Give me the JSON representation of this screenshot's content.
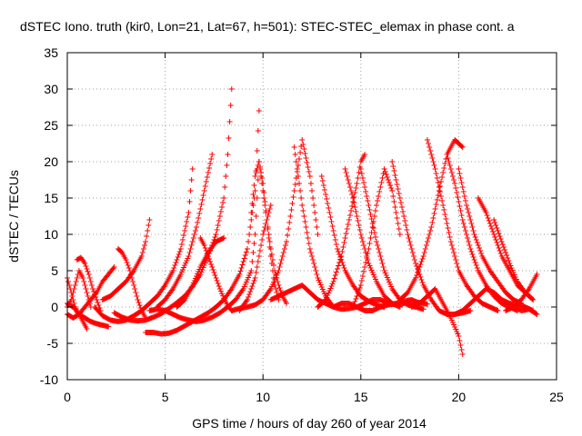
{
  "chart_data": {
    "type": "scatter",
    "title": "dSTEC Iono. truth (kir0, Lon=21, Lat=67, h=501): STEC-STEC_elemax in phase cont. a",
    "xlabel": "GPS time / hours of day 260 of year 2014",
    "ylabel": "dSTEC  / TECUs",
    "xlim": [
      0,
      25
    ],
    "ylim": [
      -10,
      35
    ],
    "xticks": [
      "0",
      "5",
      "10",
      "15",
      "20",
      "25"
    ],
    "yticks": [
      "-10",
      "-5",
      "0",
      "5",
      "10",
      "15",
      "20",
      "25",
      "30",
      "35"
    ],
    "grid": true,
    "marker": "plus",
    "color": "#ff0000",
    "series": [
      {
        "x": [
          0.0,
          0.2,
          0.4,
          0.6,
          0.8,
          1.0
        ],
        "y": [
          4,
          2,
          0,
          -1,
          -2,
          -3
        ]
      },
      {
        "x": [
          0.0,
          0.3,
          0.6,
          0.9,
          1.2,
          1.5,
          1.8,
          2.1,
          2.4
        ],
        "y": [
          -1,
          -1.5,
          -1,
          0,
          1,
          2,
          3.5,
          4.5,
          5.5
        ]
      },
      {
        "x": [
          0.5,
          0.7,
          0.9,
          1.1,
          1.3,
          1.5,
          1.7
        ],
        "y": [
          6.5,
          6.8,
          6.0,
          4.5,
          2.5,
          1.0,
          -0.5
        ]
      },
      {
        "x": [
          0.0,
          0.2,
          0.4,
          0.6,
          0.8,
          1.0,
          1.2
        ],
        "y": [
          0,
          1,
          3,
          5,
          4,
          2,
          0
        ]
      },
      {
        "x": [
          0.0,
          0.3,
          0.6,
          0.9,
          1.2,
          1.5,
          1.8,
          2.1
        ],
        "y": [
          0.5,
          0,
          -1,
          -1.5,
          -2,
          -2.3,
          -2.5,
          -2.7
        ]
      },
      {
        "x": [
          1.4,
          1.8,
          2.2,
          2.6,
          3.0,
          3.4,
          3.8,
          4.2,
          4.6,
          5.0,
          5.4,
          5.8,
          6.2,
          6.4
        ],
        "y": [
          0,
          -1.2,
          -1.8,
          -2,
          -1.8,
          -1.2,
          -0.5,
          0.5,
          1.5,
          3,
          5,
          8,
          13,
          19
        ]
      },
      {
        "x": [
          1.8,
          2.2,
          2.6,
          3.0,
          3.4,
          3.8,
          4.0,
          4.2
        ],
        "y": [
          1,
          1.5,
          2.5,
          3.5,
          5,
          7,
          9,
          12
        ]
      },
      {
        "x": [
          2.6,
          2.8,
          3.0,
          3.2,
          3.4,
          3.6,
          3.8,
          4.0
        ],
        "y": [
          8,
          7.5,
          6.5,
          5,
          3,
          1,
          -0.5,
          -1.5
        ]
      },
      {
        "x": [
          2.4,
          2.8,
          3.2,
          3.6,
          4.0,
          4.4,
          4.8,
          5.2,
          5.6,
          6.0,
          6.4,
          6.8,
          7.2,
          7.6,
          8.0,
          8.2,
          8.4
        ],
        "y": [
          -0.8,
          -1.4,
          -1.8,
          -1.9,
          -1.8,
          -1.4,
          -0.9,
          -0.2,
          0.6,
          1.5,
          2.8,
          4.5,
          7,
          10,
          15,
          21,
          30
        ]
      },
      {
        "x": [
          4.0,
          4.4,
          4.8,
          5.2,
          5.6,
          6.0,
          6.4,
          6.8,
          7.2,
          7.6,
          8.0,
          8.4,
          8.8,
          9.2,
          9.6,
          9.8
        ],
        "y": [
          -3.5,
          -3.5,
          -3.7,
          -3.6,
          -3.2,
          -2.6,
          -2,
          -1.4,
          -0.8,
          0,
          1,
          2.5,
          4.5,
          8,
          16,
          27
        ]
      },
      {
        "x": [
          4.2,
          4.6,
          5.0,
          5.4,
          5.8,
          6.2,
          6.6,
          7.0,
          7.4,
          7.8,
          8.2,
          8.6,
          9.0,
          9.4,
          9.6,
          9.8
        ],
        "y": [
          -0.5,
          -0.3,
          -0.5,
          -1,
          -1.5,
          -1.8,
          -2,
          -1.8,
          -1.4,
          -0.8,
          0,
          1,
          2.5,
          5,
          10,
          20
        ]
      },
      {
        "x": [
          4.6,
          5.0,
          5.4,
          5.8,
          6.2,
          6.6,
          7.0,
          7.4
        ],
        "y": [
          0,
          1,
          2.5,
          4.5,
          7,
          11,
          16,
          21
        ]
      },
      {
        "x": [
          5.6,
          6.0,
          6.4,
          6.8,
          7.2,
          7.6,
          8.0
        ],
        "y": [
          0,
          1,
          3,
          5.5,
          7.5,
          9,
          9.5
        ]
      },
      {
        "x": [
          6.8,
          7.0,
          7.2,
          7.4,
          7.6,
          7.8,
          8.0,
          8.2,
          8.4
        ],
        "y": [
          9.5,
          8.5,
          7,
          5.5,
          4,
          2.5,
          1.2,
          0.2,
          -0.5
        ]
      },
      {
        "x": [
          8.4,
          8.8,
          9.2,
          9.6,
          10.0,
          10.4,
          10.8,
          11.2,
          11.6,
          12.0,
          12.4,
          12.8
        ],
        "y": [
          -0.5,
          -0.2,
          0,
          0.3,
          1,
          2.5,
          5,
          9,
          16,
          23,
          18,
          10
        ]
      },
      {
        "x": [
          9.8,
          10.0,
          10.2,
          10.4,
          10.6,
          10.8,
          11.0,
          11.2
        ],
        "y": [
          20,
          16,
          12,
          8,
          5,
          3,
          1.5,
          0.5
        ]
      },
      {
        "x": [
          9.4,
          9.6,
          9.8,
          10.0,
          10.2,
          10.4,
          10.6,
          10.8
        ],
        "y": [
          13,
          18,
          20,
          17,
          12,
          7,
          3,
          1
        ]
      },
      {
        "x": [
          8.8,
          9.2,
          9.6,
          10.0,
          10.4
        ],
        "y": [
          -0.5,
          1,
          4,
          10,
          14
        ]
      },
      {
        "x": [
          10.4,
          10.8,
          11.2,
          11.6,
          12.0,
          12.4,
          12.8,
          13.2,
          13.6,
          14.0,
          14.4,
          14.8,
          15.2,
          15.6,
          16.0,
          16.4,
          16.8,
          17.2,
          17.6,
          18.0
        ],
        "y": [
          1,
          1.5,
          2,
          2.5,
          3,
          2,
          1,
          0.5,
          0,
          0.5,
          0.5,
          0,
          -0.5,
          -0.5,
          0,
          0.3,
          0.5,
          0.8,
          1,
          0.5
        ]
      },
      {
        "x": [
          11.6,
          12.0,
          12.4,
          12.8,
          13.2,
          13.6,
          14.0,
          14.4,
          14.8,
          15.2,
          15.6,
          16.0,
          16.4,
          16.8,
          17.2,
          17.6,
          18.0,
          18.4
        ],
        "y": [
          22,
          14,
          8,
          4,
          1.5,
          0,
          -0.3,
          -0.2,
          0,
          0.5,
          1,
          1,
          0.5,
          0.3,
          0.5,
          0.8,
          0.6,
          0.4
        ]
      },
      {
        "x": [
          12.8,
          13.2,
          13.6,
          14.0,
          14.4,
          14.8,
          15.0,
          15.2
        ],
        "y": [
          0,
          1,
          3.5,
          7,
          12,
          17,
          20,
          21
        ]
      },
      {
        "x": [
          13.0,
          13.4,
          13.8,
          14.2,
          14.6,
          15.0,
          15.4,
          15.8,
          16.2
        ],
        "y": [
          18,
          13,
          8,
          5,
          3,
          1.5,
          0.8,
          0.3,
          0
        ]
      },
      {
        "x": [
          14.2,
          14.6,
          15.0,
          15.4,
          15.8,
          16.2,
          16.6,
          17.0
        ],
        "y": [
          19,
          15,
          10,
          6,
          3.5,
          1.5,
          0.5,
          0
        ]
      },
      {
        "x": [
          15.0,
          15.4,
          15.8,
          16.2,
          16.6,
          17.0,
          17.4,
          17.8,
          18.2
        ],
        "y": [
          19,
          14,
          9,
          5,
          2.5,
          1,
          0.3,
          0,
          -0.3
        ]
      },
      {
        "x": [
          14.6,
          15.0,
          15.4,
          15.8,
          16.2,
          16.6,
          17.0
        ],
        "y": [
          0,
          3,
          8,
          14,
          19,
          16,
          10
        ]
      },
      {
        "x": [
          16.6,
          17.0,
          17.4,
          17.8,
          18.2,
          18.6,
          19.0,
          19.4,
          19.8,
          20.2,
          20.6
        ],
        "y": [
          20,
          15,
          10,
          6,
          3,
          1,
          -0.5,
          -1,
          -1,
          -0.8,
          -0.5
        ]
      },
      {
        "x": [
          17.0,
          17.4,
          17.8,
          18.2,
          18.6,
          19.0,
          19.4,
          19.8,
          20.2
        ],
        "y": [
          1,
          2,
          4,
          7,
          11,
          16,
          21,
          23,
          22
        ]
      },
      {
        "x": [
          17.6,
          18.0,
          18.4,
          18.8,
          19.2,
          19.6,
          20.0,
          20.2
        ],
        "y": [
          0,
          0.5,
          1.5,
          2.5,
          0.5,
          -1.5,
          -4,
          -6.5
        ]
      },
      {
        "x": [
          18.4,
          18.8,
          19.2,
          19.6,
          20.0,
          20.4,
          20.8,
          21.2,
          21.6,
          22.0
        ],
        "y": [
          23,
          19,
          14,
          9,
          5,
          3,
          1.5,
          0.5,
          0,
          -0.5
        ]
      },
      {
        "x": [
          19.4,
          19.8,
          20.2,
          20.6,
          21.0,
          21.4,
          21.8,
          22.2,
          22.6,
          23.0
        ],
        "y": [
          21,
          17,
          12,
          8,
          5,
          3,
          1.5,
          0.5,
          0,
          -0.5
        ]
      },
      {
        "x": [
          20.0,
          20.4,
          20.8,
          21.2,
          21.6,
          22.0,
          22.4,
          22.8,
          23.2
        ],
        "y": [
          19,
          14,
          10,
          7,
          5,
          3.5,
          2,
          1,
          0.5
        ]
      },
      {
        "x": [
          19.8,
          20.2,
          20.6,
          21.0,
          21.4,
          21.8,
          22.2,
          22.6,
          23.0,
          23.4,
          23.8
        ],
        "y": [
          -1,
          -0.5,
          0.5,
          1.5,
          2.5,
          2,
          1,
          0.5,
          0.3,
          0,
          -0.5
        ]
      },
      {
        "x": [
          21.0,
          21.4,
          21.8,
          22.2,
          22.6,
          23.0,
          23.4,
          23.8
        ],
        "y": [
          15,
          13,
          10,
          7,
          5,
          3,
          2,
          1
        ]
      },
      {
        "x": [
          21.8,
          22.2,
          22.6,
          23.0,
          23.4,
          23.8
        ],
        "y": [
          12,
          9,
          6,
          3.5,
          2,
          1
        ]
      },
      {
        "x": [
          22.4,
          22.8,
          23.2,
          23.6,
          24.0
        ],
        "y": [
          -0.5,
          0,
          1,
          2.5,
          4.5
        ]
      },
      {
        "x": [
          22.0,
          22.4,
          22.8,
          23.2,
          23.6,
          24.0
        ],
        "y": [
          1,
          0.5,
          0,
          -0.5,
          -0.3,
          -1
        ]
      }
    ]
  }
}
